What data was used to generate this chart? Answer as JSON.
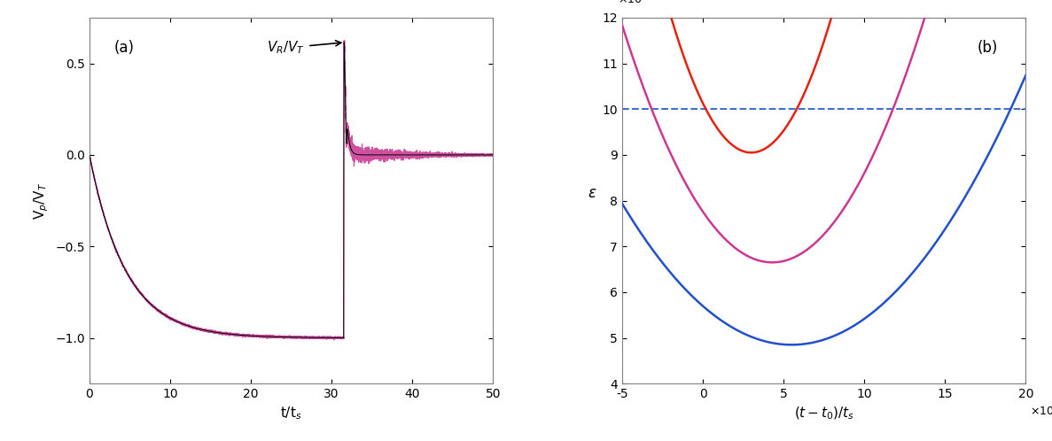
{
  "fig_width": 11.87,
  "fig_height": 4.98,
  "dpi": 100,
  "panel_a": {
    "label": "(a)",
    "xlabel": "t/t$_s$",
    "ylabel": "V$_p$/V$_T$",
    "xlim": [
      0,
      50
    ],
    "ylim": [
      -1.25,
      0.75
    ],
    "yticks": [
      -1,
      -0.5,
      0,
      0.5
    ],
    "xticks": [
      0,
      10,
      20,
      30,
      40,
      50
    ],
    "pink_color": "#d050a0",
    "black_color": "#000000",
    "annotation_text": "V$_R$/V$_T$",
    "tau_p": 4.5,
    "bounce_time": 31.5,
    "VR_VT": 0.615,
    "noise_amplitude": 0.025
  },
  "panel_b": {
    "label": "(b)",
    "xlabel": "$(t - t_0)/t_s$",
    "ylabel": "$\\varepsilon$",
    "xlim": [
      -0.005,
      0.02
    ],
    "ylim": [
      0.004,
      0.012
    ],
    "ytick_vals": [
      4,
      5,
      6,
      7,
      8,
      9,
      10,
      11,
      12
    ],
    "xtick_vals": [
      -5,
      0,
      5,
      10,
      15,
      20
    ],
    "dashed_value": 0.01,
    "red_color": "#e82010",
    "magenta_color": "#cc3890",
    "blue_color": "#2050cc",
    "dashed_color": "#4070d0",
    "red_min_x": 0.003,
    "red_min_y": 0.00905,
    "red_curv": 120.0,
    "magenta_min_x": 0.0043,
    "magenta_min_y": 0.00665,
    "magenta_curv": 60.0,
    "blue_min_x": 0.0055,
    "blue_min_y": 0.00485,
    "blue_curv": 28.0
  }
}
